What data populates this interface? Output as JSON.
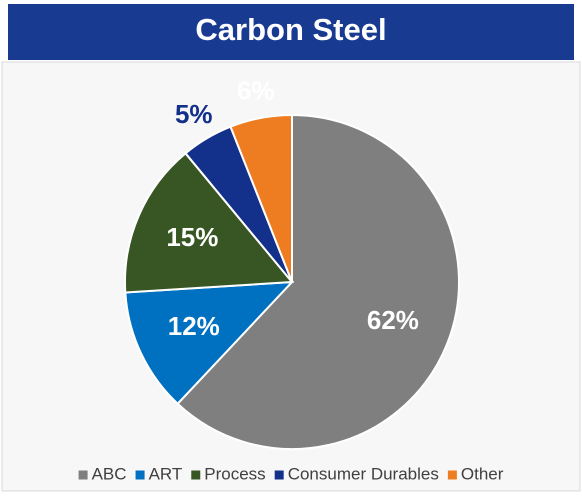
{
  "chart_data": {
    "type": "pie",
    "title": "Carbon Steel",
    "categories": [
      "ABC",
      "ART",
      "Process",
      "Consumer Durables",
      "Other"
    ],
    "values": [
      62,
      12,
      15,
      5,
      6
    ],
    "value_labels": [
      "62%",
      "12%",
      "15%",
      "5%",
      "6%"
    ],
    "colors": [
      "#7f7f7f",
      "#0070c0",
      "#375623",
      "#13308a",
      "#ee7d22"
    ],
    "label_colors": [
      "#ffffff",
      "#ffffff",
      "#ffffff",
      "#13308a",
      "#ffffff"
    ],
    "legend": "bottom"
  }
}
